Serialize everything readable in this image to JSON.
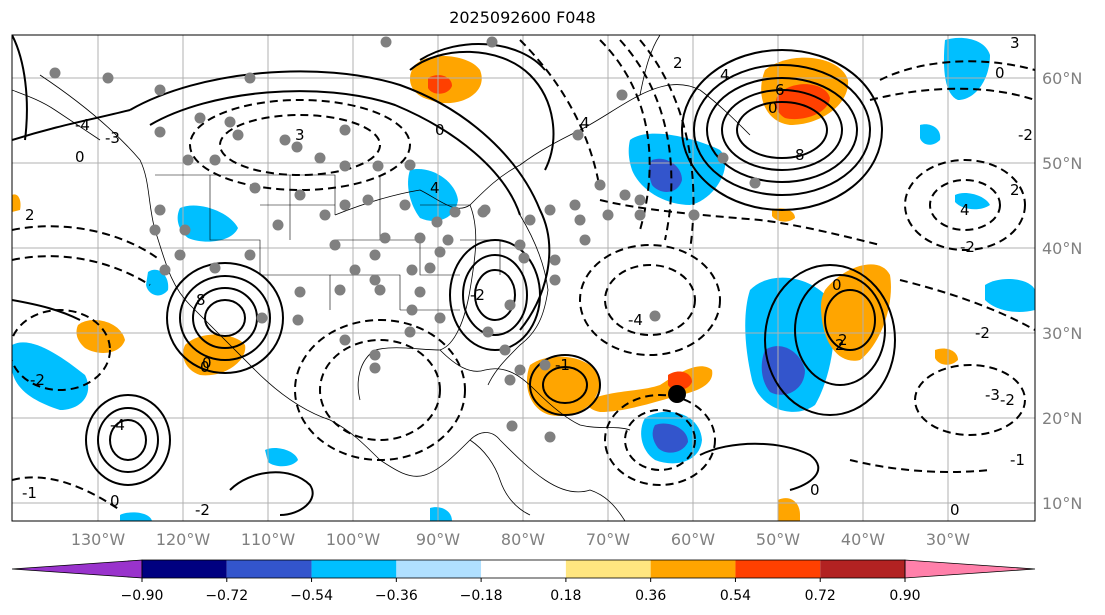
{
  "title": "2025092600 F048",
  "lat_labels": [
    "60°N",
    "50°N",
    "40°N",
    "30°N",
    "20°N",
    "10°N"
  ],
  "lon_labels": [
    "130°W",
    "120°W",
    "110°W",
    "100°W",
    "90°W",
    "80°W",
    "70°W",
    "60°W",
    "50°W",
    "40°W",
    "30°W"
  ],
  "colorbar": {
    "ticks": [
      "−0.90",
      "−0.72",
      "−0.54",
      "−0.36",
      "−0.18",
      "0.18",
      "0.36",
      "0.54",
      "0.72",
      "0.90"
    ],
    "colors": [
      "#9933cc",
      "#000080",
      "#3355cc",
      "#00bfff",
      "#b0e0ff",
      "#ffffff",
      "#ffe680",
      "#ffa500",
      "#ff4000",
      "#b22222",
      "#ff80aa"
    ]
  },
  "contour_labels": [
    "2",
    "0",
    "4",
    "-2",
    "0",
    "4",
    "3",
    "-4",
    "4",
    "2",
    "8",
    "-3",
    "0",
    "6",
    "8",
    "-1",
    "0",
    "0",
    "-2",
    "-4",
    "0",
    "-3",
    "2",
    "0",
    "-2",
    "-2",
    "4",
    "2",
    "0",
    "3",
    "-2",
    "-4",
    "-1",
    "0",
    "-1",
    "2",
    "0",
    "-2",
    "-2"
  ],
  "colors": {
    "negative_shading": "#00bfff",
    "negative_strong": "#3355cc",
    "positive_shading": "#ffa500",
    "positive_strong": "#ff4000",
    "observation_dots": "#808080",
    "storm_marker": "#000000"
  }
}
